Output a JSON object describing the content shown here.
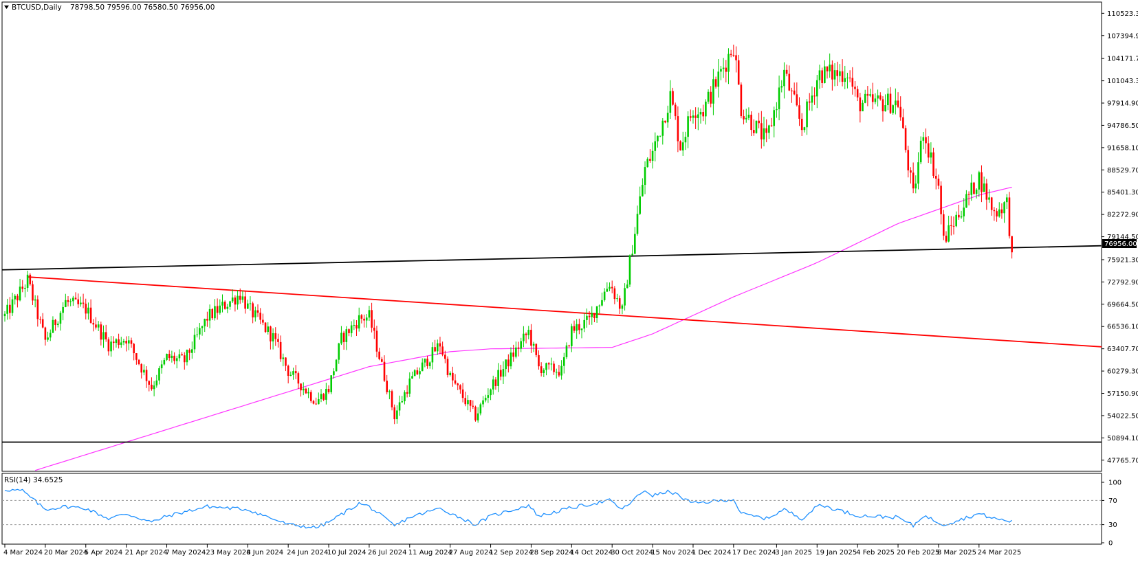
{
  "chart_data": [
    {
      "type": "candlestick",
      "title": "BTCUSD,Daily",
      "ohlc_header": "78798.50 79596.00 76580.50 76956.00",
      "header_icon": "triangle-down-icon",
      "ylim": [
        46200,
        112100
      ],
      "y_ticks": [
        "110523.30",
        "107394.90",
        "104171.70",
        "101043.30",
        "97914.90",
        "94786.50",
        "91658.10",
        "88529.70",
        "85401.30",
        "82272.90",
        "79144.50",
        "75921.30",
        "72792.90",
        "69664.50",
        "66536.10",
        "63407.70",
        "60279.30",
        "57150.90",
        "54022.50",
        "50894.10",
        "47765.70"
      ],
      "x_ticks": [
        "4 Mar 2024",
        "20 Mar 2024",
        "5 Apr 2024",
        "21 Apr 2024",
        "7 May 2024",
        "23 May 2024",
        "8 Jun 2024",
        "24 Jun 2024",
        "10 Jul 2024",
        "26 Jul 2024",
        "11 Aug 2024",
        "27 Aug 2024",
        "12 Sep 2024",
        "28 Sep 2024",
        "14 Oct 2024",
        "30 Oct 2024",
        "15 Nov 2024",
        "1 Dec 2024",
        "17 Dec 2024",
        "3 Jan 2025",
        "19 Jan 2025",
        "4 Feb 2025",
        "20 Feb 2025",
        "8 Mar 2025",
        "24 Mar 2025"
      ],
      "price_label": "76956.00",
      "close_anchors": [
        [
          "4 Mar 2024",
          68000
        ],
        [
          "13 Mar 2024",
          73000
        ],
        [
          "20 Mar 2024",
          64500
        ],
        [
          "28 Mar 2024",
          70000
        ],
        [
          "5 Apr 2024",
          69000
        ],
        [
          "14 Apr 2024",
          64000
        ],
        [
          "21 Apr 2024",
          64900
        ],
        [
          "1 May 2024",
          58000
        ],
        [
          "7 May 2024",
          62200
        ],
        [
          "14 May 2024",
          61700
        ],
        [
          "23 May 2024",
          67800
        ],
        [
          "5 Jun 2024",
          71100
        ],
        [
          "8 Jun 2024",
          69200
        ],
        [
          "18 Jun 2024",
          65000
        ],
        [
          "24 Jun 2024",
          60300
        ],
        [
          "5 Jul 2024",
          56000
        ],
        [
          "10 Jul 2024",
          57800
        ],
        [
          "15 Jul 2024",
          64800
        ],
        [
          "22 Jul 2024",
          67600
        ],
        [
          "26 Jul 2024",
          67900
        ],
        [
          "5 Aug 2024",
          54000
        ],
        [
          "11 Aug 2024",
          58700
        ],
        [
          "23 Aug 2024",
          64100
        ],
        [
          "27 Aug 2024",
          59400
        ],
        [
          "6 Sep 2024",
          53900
        ],
        [
          "12 Sep 2024",
          58000
        ],
        [
          "27 Sep 2024",
          65800
        ],
        [
          "1 Oct 2024",
          60800
        ],
        [
          "10 Oct 2024",
          60300
        ],
        [
          "14 Oct 2024",
          66000
        ],
        [
          "21 Oct 2024",
          67400
        ],
        [
          "29 Oct 2024",
          72700
        ],
        [
          "3 Nov 2024",
          68700
        ],
        [
          "6 Nov 2024",
          75600
        ],
        [
          "12 Nov 2024",
          88700
        ],
        [
          "15 Nov 2024",
          91000
        ],
        [
          "22 Nov 2024",
          98900
        ],
        [
          "26 Nov 2024",
          91900
        ],
        [
          "1 Dec 2024",
          97200
        ],
        [
          "5 Dec 2024",
          96900
        ],
        [
          "17 Dec 2024",
          106100
        ],
        [
          "20 Dec 2024",
          97200
        ],
        [
          "30 Dec 2024",
          92600
        ],
        [
          "3 Jan 2025",
          98100
        ],
        [
          "6 Jan 2025",
          102200
        ],
        [
          "13 Jan 2025",
          94500
        ],
        [
          "19 Jan 2025",
          101300
        ],
        [
          "20 Jan 2025",
          102100
        ],
        [
          "27 Jan 2025",
          102000
        ],
        [
          "31 Jan 2025",
          102400
        ],
        [
          "4 Feb 2025",
          97900
        ],
        [
          "20 Feb 2025",
          98000
        ],
        [
          "26 Feb 2025",
          84800
        ],
        [
          "2 Mar 2025",
          94200
        ],
        [
          "8 Mar 2025",
          86100
        ],
        [
          "10 Mar 2025",
          78600
        ],
        [
          "24 Mar 2025",
          87500
        ],
        [
          "30 Mar 2025",
          82500
        ],
        [
          "4 Apr 2025",
          83900
        ],
        [
          "6 Apr 2025",
          76956
        ]
      ],
      "indicators": {
        "moving_average": {
          "color": "#ff33ff",
          "points": [
            [
              "4 Mar 2024",
              45000
            ],
            [
              "26 Jul 2024",
              60900
            ],
            [
              "27 Aug 2024",
              63000
            ],
            [
              "12 Sep 2024",
              63400
            ],
            [
              "30 Oct 2024",
              63600
            ],
            [
              "15 Nov 2024",
              65500
            ],
            [
              "17 Dec 2024",
              70700
            ],
            [
              "19 Jan 2025",
              75500
            ],
            [
              "20 Feb 2025",
              81000
            ],
            [
              "24 Mar 2025",
              85000
            ],
            [
              "6 Apr 2025",
              86100
            ]
          ]
        }
      },
      "trendlines": [
        {
          "color": "#000000",
          "points": [
            [
              "4 Mar 2024",
              74500
            ],
            [
              "6 Apr 2025",
              77600
            ]
          ]
        },
        {
          "color": "#ff0000",
          "points": [
            [
              "13 Mar 2024",
              73500
            ],
            [
              "6 Apr 2025",
              64500
            ]
          ]
        },
        {
          "color": "#000000",
          "points": [
            [
              "4 Mar 2024",
              50300
            ],
            [
              "6 Apr 2025",
              50300
            ]
          ]
        }
      ],
      "colors": {
        "bull": "#00cc00",
        "bear": "#ff0000"
      }
    },
    {
      "type": "line",
      "title": "RSI(14) 34.6525",
      "ylim": [
        0,
        100
      ],
      "y_ticks": [
        "100",
        "70",
        "30",
        "0"
      ],
      "levels": [
        70,
        30
      ],
      "series": [
        {
          "color": "#1e90ff",
          "points": [
            [
              "4 Mar 2024",
              88
            ],
            [
              "11 Mar 2024",
              86
            ],
            [
              "20 Mar 2024",
              55
            ],
            [
              "28 Mar 2024",
              60
            ],
            [
              "5 Apr 2024",
              57
            ],
            [
              "14 Apr 2024",
              40
            ],
            [
              "21 Apr 2024",
              48
            ],
            [
              "1 May 2024",
              34
            ],
            [
              "7 May 2024",
              44
            ],
            [
              "23 May 2024",
              60
            ],
            [
              "8 Jun 2024",
              55
            ],
            [
              "24 Jun 2024",
              30
            ],
            [
              "5 Jul 2024",
              25
            ],
            [
              "10 Jul 2024",
              34
            ],
            [
              "22 Jul 2024",
              65
            ],
            [
              "26 Jul 2024",
              60
            ],
            [
              "5 Aug 2024",
              28
            ],
            [
              "11 Aug 2024",
              42
            ],
            [
              "23 Aug 2024",
              57
            ],
            [
              "6 Sep 2024",
              30
            ],
            [
              "12 Sep 2024",
              44
            ],
            [
              "27 Sep 2024",
              62
            ],
            [
              "1 Oct 2024",
              44
            ],
            [
              "14 Oct 2024",
              58
            ],
            [
              "29 Oct 2024",
              70
            ],
            [
              "3 Nov 2024",
              55
            ],
            [
              "12 Nov 2024",
              87
            ],
            [
              "15 Nov 2024",
              78
            ],
            [
              "22 Nov 2024",
              85
            ],
            [
              "1 Dec 2024",
              65
            ],
            [
              "17 Dec 2024",
              72
            ],
            [
              "20 Dec 2024",
              48
            ],
            [
              "30 Dec 2024",
              40
            ],
            [
              "6 Jan 2025",
              55
            ],
            [
              "13 Jan 2025",
              40
            ],
            [
              "20 Jan 2025",
              63
            ],
            [
              "4 Feb 2025",
              45
            ],
            [
              "20 Feb 2025",
              42
            ],
            [
              "26 Feb 2025",
              28
            ],
            [
              "2 Mar 2025",
              45
            ],
            [
              "10 Mar 2025",
              30
            ],
            [
              "24 Mar 2025",
              48
            ],
            [
              "30 Mar 2025",
              40
            ],
            [
              "6 Apr 2025",
              35
            ]
          ]
        }
      ]
    }
  ]
}
